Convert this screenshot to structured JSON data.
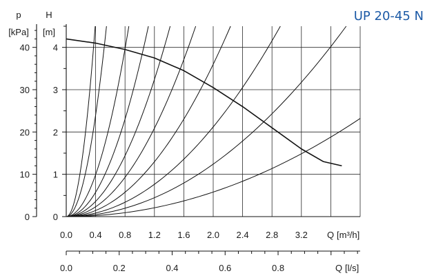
{
  "chart_data": {
    "type": "line",
    "title": "UP 20-45 N",
    "left_axes": {
      "pressure": {
        "symbol": "p",
        "unit": "[kPa]",
        "ticks": [
          "0",
          "10",
          "20",
          "30",
          "40"
        ],
        "range": [
          0,
          45
        ]
      },
      "head": {
        "symbol": "H",
        "unit": "[m]",
        "ticks": [
          "0",
          "1",
          "2",
          "3",
          "4"
        ],
        "range": [
          0,
          4.5
        ]
      }
    },
    "bottom_axes": {
      "flow_m3h": {
        "symbol": "Q",
        "unit": "[m³/h]",
        "ticks": [
          "0.0",
          "0.4",
          "0.8",
          "1.2",
          "1.6",
          "2.0",
          "2.4",
          "2.8",
          "3.2"
        ],
        "range": [
          0,
          4.0
        ]
      },
      "flow_ls": {
        "symbol": "Q",
        "unit": "[l/s]",
        "ticks": [
          "0.0",
          "0.2",
          "0.4",
          "0.6",
          "0.8"
        ],
        "range": [
          0,
          1.11
        ]
      }
    },
    "grid": true,
    "pump_curve": {
      "x": [
        0.0,
        0.4,
        0.8,
        1.2,
        1.6,
        2.0,
        2.4,
        2.8,
        3.2,
        3.5,
        3.75
      ],
      "y": [
        4.2,
        4.1,
        3.95,
        3.75,
        3.45,
        3.05,
        2.6,
        2.1,
        1.6,
        1.3,
        1.2
      ]
    },
    "system_curves": {
      "form": "H = k * Q^2",
      "k": [
        29,
        15,
        6.2,
        3.6,
        2.25,
        1.45,
        0.9,
        0.53,
        0.31,
        0.145
      ]
    }
  }
}
